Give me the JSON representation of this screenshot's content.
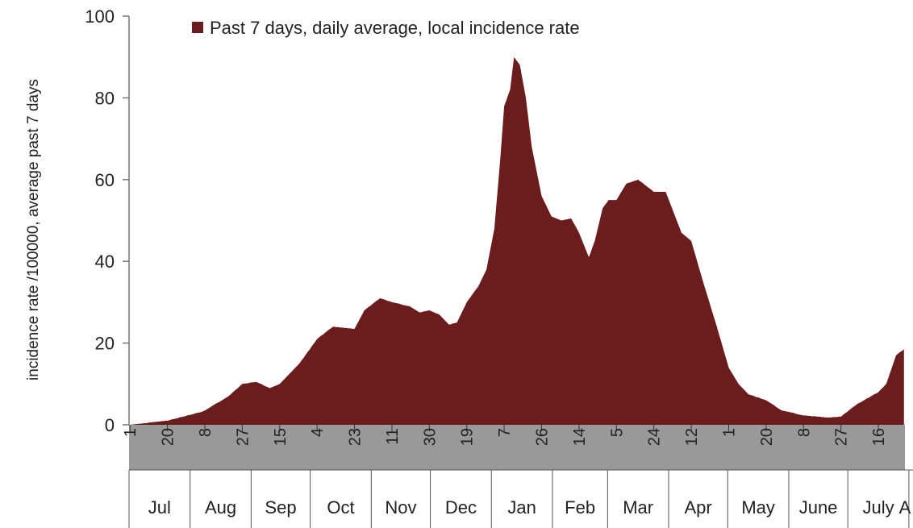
{
  "chart_data": {
    "type": "area",
    "y_label": "incidence rate /100000, average past 7 days",
    "legend": "top",
    "ylim": [
      0,
      100
    ],
    "yticks": [
      0,
      20,
      40,
      60,
      80,
      100
    ],
    "months": [
      "Jul",
      "Aug",
      "Sep",
      "Oct",
      "Nov",
      "Dec",
      "Jan",
      "Feb",
      "Mar",
      "Apr",
      "May",
      "June",
      "July",
      "A"
    ],
    "categories": [
      "1",
      null,
      null,
      null,
      null,
      null,
      null,
      null,
      null,
      null,
      null,
      null,
      null,
      null,
      null,
      null,
      null,
      null,
      null,
      "20",
      null,
      null,
      null,
      null,
      null,
      null,
      null,
      null,
      null,
      null,
      null,
      null,
      null,
      null,
      null,
      null,
      null,
      null,
      "8",
      null,
      null,
      null,
      null,
      null,
      null,
      null,
      null,
      null,
      null,
      null,
      null,
      null,
      null,
      null,
      null,
      null,
      null,
      "27",
      null,
      null,
      null,
      null,
      null,
      null,
      null,
      null,
      null,
      null,
      null,
      null,
      null,
      null,
      null,
      null,
      null,
      null,
      "15",
      null,
      null,
      null,
      null,
      null,
      null,
      null,
      null,
      null,
      null,
      null,
      null,
      null,
      null,
      null,
      null,
      null,
      null,
      "4",
      null,
      null,
      null,
      null,
      null,
      null,
      null,
      null,
      null,
      null,
      null,
      null,
      null,
      null,
      null,
      null,
      null,
      null,
      "23",
      null,
      null,
      null,
      null,
      null,
      null,
      null,
      null,
      null,
      null,
      null,
      null,
      null,
      null,
      null,
      null,
      null,
      null,
      "11",
      null,
      null,
      null,
      null,
      null,
      null,
      null,
      null,
      null,
      null,
      null,
      null,
      null,
      null,
      null,
      null,
      null,
      null,
      "30",
      null,
      null,
      null,
      null,
      null,
      null,
      null,
      null,
      null,
      null,
      null,
      null,
      null,
      null,
      null,
      null,
      null,
      null,
      "19",
      null,
      null,
      null,
      null,
      null,
      null,
      null,
      null,
      null,
      null,
      null,
      null,
      null,
      null,
      null,
      null,
      null,
      null,
      "7",
      null,
      null,
      null,
      null,
      null,
      null,
      null,
      null,
      null,
      null,
      null,
      null,
      null,
      null,
      null,
      null,
      null,
      null,
      "26",
      null,
      null,
      null,
      null,
      null,
      null,
      null,
      null,
      null,
      null,
      null,
      null,
      null,
      null,
      null,
      null,
      null,
      null,
      "14",
      null,
      null,
      null,
      null,
      null,
      null,
      null,
      null,
      null,
      null,
      null,
      null,
      null,
      null,
      null,
      null,
      null,
      null,
      "5",
      null,
      null,
      null,
      null,
      null,
      null,
      null,
      null,
      null,
      null,
      null,
      null,
      null,
      null,
      null,
      null,
      null,
      null,
      "24",
      null,
      null,
      null,
      null,
      null,
      null,
      null,
      null,
      null,
      null,
      null,
      null,
      null,
      null,
      null,
      null,
      null,
      null,
      "12",
      null,
      null,
      null,
      null,
      null,
      null,
      null,
      null,
      null,
      null,
      null,
      null,
      null,
      null,
      null,
      null,
      null,
      null,
      "1",
      null,
      null,
      null,
      null,
      null,
      null,
      null,
      null,
      null,
      null,
      null,
      null,
      null,
      null,
      null,
      null,
      null,
      null,
      "20",
      null,
      null,
      null,
      null,
      null,
      null,
      null,
      null,
      null,
      null,
      null,
      null,
      null,
      null,
      null,
      null,
      null,
      null,
      "8",
      null,
      null,
      null,
      null,
      null,
      null,
      null,
      null,
      null,
      null,
      null,
      null,
      null,
      null,
      null,
      null,
      null,
      null,
      "27",
      null,
      null,
      null,
      null,
      null,
      null,
      null,
      null,
      null,
      null,
      null,
      null,
      null,
      null,
      null,
      null,
      null,
      null,
      "16",
      null,
      null,
      null,
      null,
      null,
      null,
      null,
      null,
      null,
      null,
      null,
      null,
      null
    ],
    "series": [
      {
        "name": "Past 7 days, daily average, local incidence rate",
        "color": "#6b1c1c",
        "values": [
          0,
          0.1,
          0.1,
          0.2,
          0.2,
          0.3,
          0.3,
          0.4,
          0.4,
          0.5,
          0.6,
          0.6,
          0.7,
          0.7,
          0.8,
          0.8,
          0.9,
          0.9,
          1,
          1,
          1.1,
          1.3,
          1.4,
          1.5,
          1.6,
          1.8,
          1.9,
          2,
          2.1,
          2.3,
          2.4,
          2.5,
          2.6,
          2.8,
          2.9,
          3,
          3.1,
          3.3,
          3.5,
          3.8,
          4.1,
          4.4,
          4.7,
          5,
          5.3,
          5.5,
          5.8,
          6.1,
          6.4,
          6.7,
          7,
          7.4,
          7.9,
          8.3,
          8.7,
          9.1,
          9.6,
          10,
          10.1,
          10.1,
          10.2,
          10.3,
          10.4,
          10.4,
          10.5,
          10.3,
          10.1,
          9.9,
          9.6,
          9.4,
          9.2,
          9,
          9.2,
          9.4,
          9.6,
          9.8,
          10,
          10.5,
          11,
          11.5,
          12,
          12.5,
          13,
          13.5,
          14,
          14.5,
          15,
          15.7,
          16.3,
          17,
          17.7,
          18.3,
          19,
          19.7,
          20.3,
          21,
          21.4,
          21.8,
          22.1,
          22.5,
          22.9,
          23.3,
          23.6,
          24,
          24,
          23.9,
          23.9,
          23.8,
          23.8,
          23.7,
          23.7,
          23.6,
          23.6,
          23.5,
          23.5,
          24.4,
          25.3,
          26.2,
          27.1,
          28,
          28.4,
          28.8,
          29.1,
          29.5,
          29.9,
          30.3,
          30.6,
          31,
          30.8,
          30.7,
          30.5,
          30.3,
          30.2,
          30,
          29.9,
          29.8,
          29.7,
          29.6,
          29.4,
          29.3,
          29.2,
          29.1,
          29,
          28.7,
          28.4,
          28.1,
          27.8,
          27.5,
          27.6,
          27.7,
          27.8,
          27.9,
          28,
          27.8,
          27.6,
          27.4,
          27.2,
          27,
          26.5,
          26,
          25.5,
          25,
          24.5,
          24.6,
          24.8,
          24.9,
          25,
          26,
          27,
          28,
          29,
          30,
          30.7,
          31.3,
          32,
          32.7,
          33.3,
          34,
          35,
          36,
          37,
          38,
          40.5,
          43,
          45.5,
          48,
          53.7,
          59.3,
          65,
          71.5,
          78,
          79.3,
          80.7,
          82,
          86,
          90,
          89.3,
          88.7,
          88,
          85.3,
          82.7,
          80,
          76,
          72,
          68,
          65.6,
          63.2,
          60.8,
          58.4,
          56,
          55,
          54,
          53,
          52,
          51,
          50.8,
          50.6,
          50.4,
          50.2,
          50,
          50.1,
          50.2,
          50.3,
          50.4,
          50.5,
          49.6,
          48.8,
          47.9,
          47,
          45.8,
          44.6,
          43.4,
          42.2,
          41,
          42.3,
          43.7,
          45,
          47,
          49,
          51,
          53,
          53.7,
          54.3,
          55,
          55,
          55,
          55,
          55,
          55.8,
          56.6,
          57.4,
          58.2,
          59,
          59.2,
          59.3,
          59.5,
          59.7,
          59.8,
          60,
          59.6,
          59.3,
          58.9,
          58.5,
          58.1,
          57.8,
          57.4,
          57,
          57,
          57,
          57,
          57,
          57,
          57,
          55.8,
          54.5,
          53.3,
          52,
          50.8,
          49.5,
          48.3,
          47,
          46.6,
          46.2,
          45.8,
          45.4,
          45,
          43.3,
          41.7,
          40,
          38.3,
          36.7,
          35,
          33.4,
          31.9,
          30.3,
          28.7,
          27.1,
          25.6,
          24,
          22.3,
          20.7,
          19,
          17.3,
          15.7,
          14,
          13.2,
          12.4,
          11.6,
          10.8,
          10,
          9.5,
          9,
          8.5,
          8,
          7.5,
          7.3,
          7.2,
          7,
          6.8,
          6.7,
          6.5,
          6.3,
          6.2,
          6,
          5.7,
          5.4,
          5.1,
          4.8,
          4.4,
          4.1,
          3.8,
          3.5,
          3.4,
          3.3,
          3.2,
          3.1,
          3,
          2.9,
          2.7,
          2.6,
          2.5,
          2.4,
          2.3,
          2.3,
          2.2,
          2.2,
          2.1,
          2.1,
          2.1,
          2,
          2,
          1.9,
          1.9,
          1.8,
          1.8,
          1.8,
          1.8,
          1.9,
          1.9,
          1.9,
          2,
          2,
          2.4,
          2.8,
          3.1,
          3.5,
          3.9,
          4.3,
          4.6,
          5,
          5.3,
          5.5,
          5.8,
          6.1,
          6.4,
          6.6,
          6.9,
          7.2,
          7.5,
          7.7,
          8,
          8.5,
          9,
          9.5,
          10,
          11.4,
          12.8,
          14.2,
          15.6,
          17,
          17.4,
          17.8,
          18.1,
          18.5
        ]
      }
    ]
  }
}
